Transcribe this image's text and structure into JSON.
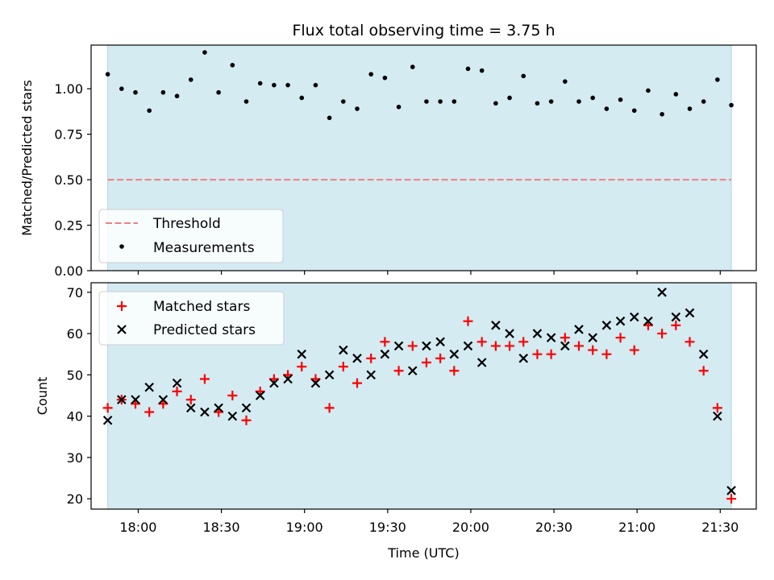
{
  "chart_data": [
    {
      "type": "scatter",
      "title": "Flux total observing time = 3.75 h",
      "xlabel": "",
      "ylabel": "Matched/Predicted stars",
      "xlim": [
        "17:43",
        "21:43"
      ],
      "ylim": [
        0,
        1.24
      ],
      "yticks": [
        0.0,
        0.25,
        0.5,
        0.75,
        1.0
      ],
      "yticklabels": [
        "0.00",
        "0.25",
        "0.50",
        "0.75",
        "1.00"
      ],
      "observing_span": [
        "17:49",
        "21:34"
      ],
      "threshold": {
        "name": "Threshold",
        "value": 0.5,
        "color": "#f08080",
        "style": "dashed"
      },
      "legend": {
        "position": "lower-left",
        "entries": [
          "Threshold",
          "Measurements"
        ]
      },
      "series": [
        {
          "name": "Measurements",
          "marker": "dot",
          "color": "#000000",
          "x": [
            "17:49",
            "17:54",
            "17:59",
            "18:04",
            "18:09",
            "18:14",
            "18:19",
            "18:24",
            "18:29",
            "18:34",
            "18:39",
            "18:44",
            "18:49",
            "18:54",
            "18:59",
            "19:04",
            "19:09",
            "19:14",
            "19:19",
            "19:24",
            "19:29",
            "19:34",
            "19:39",
            "19:44",
            "19:49",
            "19:54",
            "19:59",
            "20:04",
            "20:09",
            "20:14",
            "20:19",
            "20:24",
            "20:29",
            "20:34",
            "20:39",
            "20:44",
            "20:49",
            "20:54",
            "20:59",
            "21:04",
            "21:09",
            "21:14",
            "21:19",
            "21:24",
            "21:29",
            "21:34"
          ],
          "y": [
            1.08,
            1.0,
            0.98,
            0.88,
            0.98,
            0.96,
            1.05,
            1.2,
            0.98,
            1.13,
            0.93,
            1.03,
            1.02,
            1.02,
            0.95,
            1.02,
            0.84,
            0.93,
            0.89,
            1.08,
            1.06,
            0.9,
            1.12,
            0.93,
            0.93,
            0.93,
            1.11,
            1.1,
            0.92,
            0.95,
            1.07,
            0.92,
            0.93,
            1.04,
            0.93,
            0.95,
            0.89,
            0.94,
            0.88,
            0.99,
            0.86,
            0.97,
            0.89,
            0.93,
            1.05,
            0.91
          ]
        }
      ]
    },
    {
      "type": "scatter",
      "title": "",
      "xlabel": "Time (UTC)",
      "ylabel": "Count",
      "xlim": [
        "17:43",
        "21:43"
      ],
      "ylim": [
        17.5,
        72.3
      ],
      "yticks": [
        20,
        30,
        40,
        50,
        60,
        70
      ],
      "yticklabels": [
        "20",
        "30",
        "40",
        "50",
        "60",
        "70"
      ],
      "xticks": [
        "18:00",
        "18:30",
        "19:00",
        "19:30",
        "20:00",
        "20:30",
        "21:00",
        "21:30"
      ],
      "observing_span": [
        "17:49",
        "21:34"
      ],
      "legend": {
        "position": "upper-left",
        "entries": [
          "Matched stars",
          "Predicted stars"
        ]
      },
      "series": [
        {
          "name": "Matched stars",
          "marker": "plus",
          "color": "#ff0000",
          "x": [
            "17:49",
            "17:54",
            "17:59",
            "18:04",
            "18:09",
            "18:14",
            "18:19",
            "18:24",
            "18:29",
            "18:34",
            "18:39",
            "18:44",
            "18:49",
            "18:54",
            "18:59",
            "19:04",
            "19:09",
            "19:14",
            "19:19",
            "19:24",
            "19:29",
            "19:34",
            "19:39",
            "19:44",
            "19:49",
            "19:54",
            "19:59",
            "20:04",
            "20:09",
            "20:14",
            "20:19",
            "20:24",
            "20:29",
            "20:34",
            "20:39",
            "20:44",
            "20:49",
            "20:54",
            "20:59",
            "21:04",
            "21:09",
            "21:14",
            "21:19",
            "21:24",
            "21:29",
            "21:34"
          ],
          "y": [
            42,
            44,
            43,
            41,
            43,
            46,
            44,
            49,
            41,
            45,
            39,
            46,
            49,
            50,
            52,
            49,
            42,
            52,
            48,
            54,
            58,
            51,
            57,
            53,
            54,
            51,
            63,
            58,
            57,
            57,
            58,
            55,
            55,
            59,
            57,
            56,
            55,
            59,
            56,
            62,
            60,
            62,
            58,
            51,
            42,
            20
          ]
        },
        {
          "name": "Predicted stars",
          "marker": "x",
          "color": "#000000",
          "x": [
            "17:49",
            "17:54",
            "17:59",
            "18:04",
            "18:09",
            "18:14",
            "18:19",
            "18:24",
            "18:29",
            "18:34",
            "18:39",
            "18:44",
            "18:49",
            "18:54",
            "18:59",
            "19:04",
            "19:09",
            "19:14",
            "19:19",
            "19:24",
            "19:29",
            "19:34",
            "19:39",
            "19:44",
            "19:49",
            "19:54",
            "19:59",
            "20:04",
            "20:09",
            "20:14",
            "20:19",
            "20:24",
            "20:29",
            "20:34",
            "20:39",
            "20:44",
            "20:49",
            "20:54",
            "20:59",
            "21:04",
            "21:09",
            "21:14",
            "21:19",
            "21:24",
            "21:29",
            "21:34"
          ],
          "y": [
            39,
            44,
            44,
            47,
            44,
            48,
            42,
            41,
            42,
            40,
            42,
            45,
            48,
            49,
            55,
            48,
            50,
            56,
            54,
            50,
            55,
            57,
            51,
            57,
            58,
            55,
            57,
            53,
            62,
            60,
            54,
            60,
            59,
            57,
            61,
            59,
            62,
            63,
            64,
            63,
            70,
            64,
            65,
            55,
            40,
            22
          ]
        }
      ]
    }
  ]
}
